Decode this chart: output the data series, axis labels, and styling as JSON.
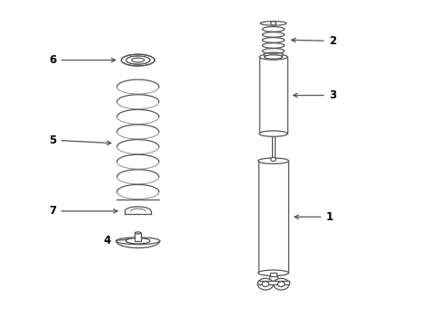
{
  "bg_color": "#ffffff",
  "line_color": "#555555",
  "label_color": "#000000",
  "fig_width": 4.89,
  "fig_height": 3.6,
  "dpi": 100
}
